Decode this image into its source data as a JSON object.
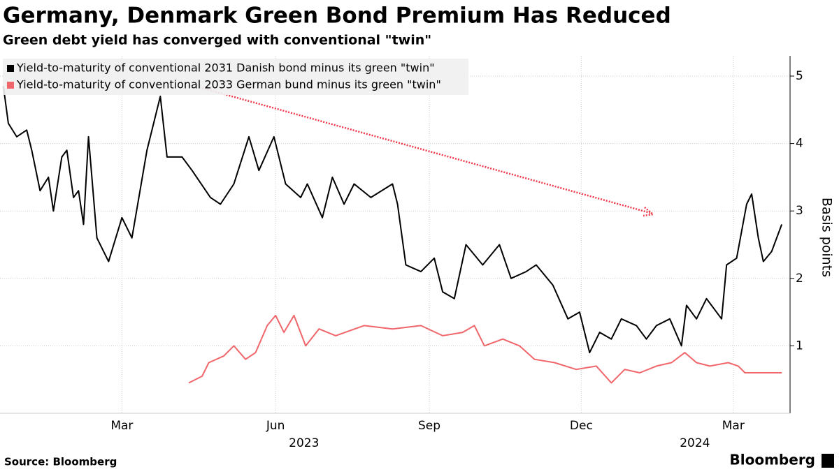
{
  "chart_data": {
    "type": "line",
    "title": "Germany, Denmark Green Bond Premium Has Reduced",
    "subtitle": "Green debt yield has converged with conventional \"twin\"",
    "y_axis_label": "Basis points",
    "source": "Source: Bloomberg",
    "brand": "Bloomberg",
    "legend_position": "top-left",
    "grid": true,
    "xlim": [
      "2022-12-18",
      "2024-04-04"
    ],
    "xticks": [
      {
        "value": "2023-03-01",
        "label": "Mar"
      },
      {
        "value": "2023-06-01",
        "label": "Jun"
      },
      {
        "value": "2023-09-01",
        "label": "Sep"
      },
      {
        "value": "2023-12-01",
        "label": "Dec"
      },
      {
        "value": "2024-03-01",
        "label": "Mar"
      }
    ],
    "xticks_secondary": [
      {
        "value": "2023-06-18",
        "label": "2023"
      },
      {
        "value": "2024-02-07",
        "label": "2024"
      }
    ],
    "ylim": [
      0,
      5.3
    ],
    "yticks": [
      1,
      2,
      3,
      4,
      5
    ],
    "series": [
      {
        "name": "Yield-to-maturity of conventional 2031 Danish bond minus its green \"twin\"",
        "color": "#000000",
        "x": [
          "2022-12-20",
          "2022-12-23",
          "2022-12-28",
          "2023-01-03",
          "2023-01-06",
          "2023-01-11",
          "2023-01-16",
          "2023-01-19",
          "2023-01-24",
          "2023-01-27",
          "2023-01-31",
          "2023-02-03",
          "2023-02-06",
          "2023-02-09",
          "2023-02-14",
          "2023-02-21",
          "2023-03-01",
          "2023-03-07",
          "2023-03-16",
          "2023-03-24",
          "2023-03-28",
          "2023-04-06",
          "2023-04-12",
          "2023-04-23",
          "2023-04-29",
          "2023-05-07",
          "2023-05-16",
          "2023-05-22",
          "2023-05-31",
          "2023-06-07",
          "2023-06-16",
          "2023-06-20",
          "2023-06-29",
          "2023-07-05",
          "2023-07-12",
          "2023-07-18",
          "2023-07-28",
          "2023-08-10",
          "2023-08-13",
          "2023-08-18",
          "2023-08-27",
          "2023-09-04",
          "2023-09-09",
          "2023-09-16",
          "2023-09-23",
          "2023-10-03",
          "2023-10-13",
          "2023-10-20",
          "2023-10-29",
          "2023-11-04",
          "2023-11-14",
          "2023-11-23",
          "2023-11-30",
          "2023-12-06",
          "2023-12-12",
          "2023-12-19",
          "2023-12-25",
          "2024-01-03",
          "2024-01-09",
          "2024-01-15",
          "2024-01-23",
          "2024-01-30",
          "2024-02-02",
          "2024-02-08",
          "2024-02-14",
          "2024-02-23",
          "2024-02-26",
          "2024-03-03",
          "2024-03-09",
          "2024-03-12",
          "2024-03-16",
          "2024-03-19",
          "2024-03-24",
          "2024-03-30"
        ],
        "values": [
          4.85,
          4.3,
          4.1,
          4.2,
          3.9,
          3.3,
          3.5,
          3.0,
          3.8,
          3.9,
          3.2,
          3.3,
          2.8,
          4.1,
          2.6,
          2.25,
          2.9,
          2.6,
          3.9,
          4.7,
          3.8,
          3.8,
          3.6,
          3.2,
          3.1,
          3.4,
          4.1,
          3.6,
          4.1,
          3.4,
          3.2,
          3.4,
          2.9,
          3.5,
          3.1,
          3.4,
          3.2,
          3.4,
          3.1,
          2.2,
          2.1,
          2.3,
          1.8,
          1.7,
          2.5,
          2.2,
          2.5,
          2.0,
          2.1,
          2.2,
          1.9,
          1.4,
          1.5,
          0.9,
          1.2,
          1.1,
          1.4,
          1.3,
          1.1,
          1.3,
          1.4,
          1.0,
          1.6,
          1.4,
          1.7,
          1.4,
          2.2,
          2.3,
          3.1,
          3.25,
          2.6,
          2.25,
          2.4,
          2.8
        ]
      },
      {
        "name": "Yield-to-maturity of conventional 2033 German bund minus its green \"twin\"",
        "color": "#f0666b",
        "x": [
          "2023-04-10",
          "2023-04-18",
          "2023-04-22",
          "2023-05-01",
          "2023-05-07",
          "2023-05-14",
          "2023-05-20",
          "2023-05-27",
          "2023-06-01",
          "2023-06-06",
          "2023-06-12",
          "2023-06-19",
          "2023-06-27",
          "2023-07-07",
          "2023-07-24",
          "2023-08-10",
          "2023-08-27",
          "2023-09-09",
          "2023-09-21",
          "2023-09-28",
          "2023-10-04",
          "2023-10-15",
          "2023-10-25",
          "2023-11-03",
          "2023-11-15",
          "2023-11-28",
          "2023-12-10",
          "2023-12-19",
          "2023-12-27",
          "2024-01-05",
          "2024-01-15",
          "2024-01-24",
          "2024-02-01",
          "2024-02-08",
          "2024-02-16",
          "2024-02-27",
          "2024-03-04",
          "2024-03-08",
          "2024-03-16",
          "2024-03-24",
          "2024-03-30"
        ],
        "values": [
          0.45,
          0.55,
          0.75,
          0.85,
          1.0,
          0.8,
          0.9,
          1.3,
          1.45,
          1.2,
          1.45,
          1.0,
          1.25,
          1.15,
          1.3,
          1.25,
          1.3,
          1.15,
          1.2,
          1.3,
          1.0,
          1.1,
          1.0,
          0.8,
          0.75,
          0.65,
          0.7,
          0.45,
          0.65,
          0.6,
          0.7,
          0.75,
          0.9,
          0.75,
          0.7,
          0.75,
          0.7,
          0.6,
          0.6,
          0.6,
          0.6
        ]
      }
    ]
  }
}
